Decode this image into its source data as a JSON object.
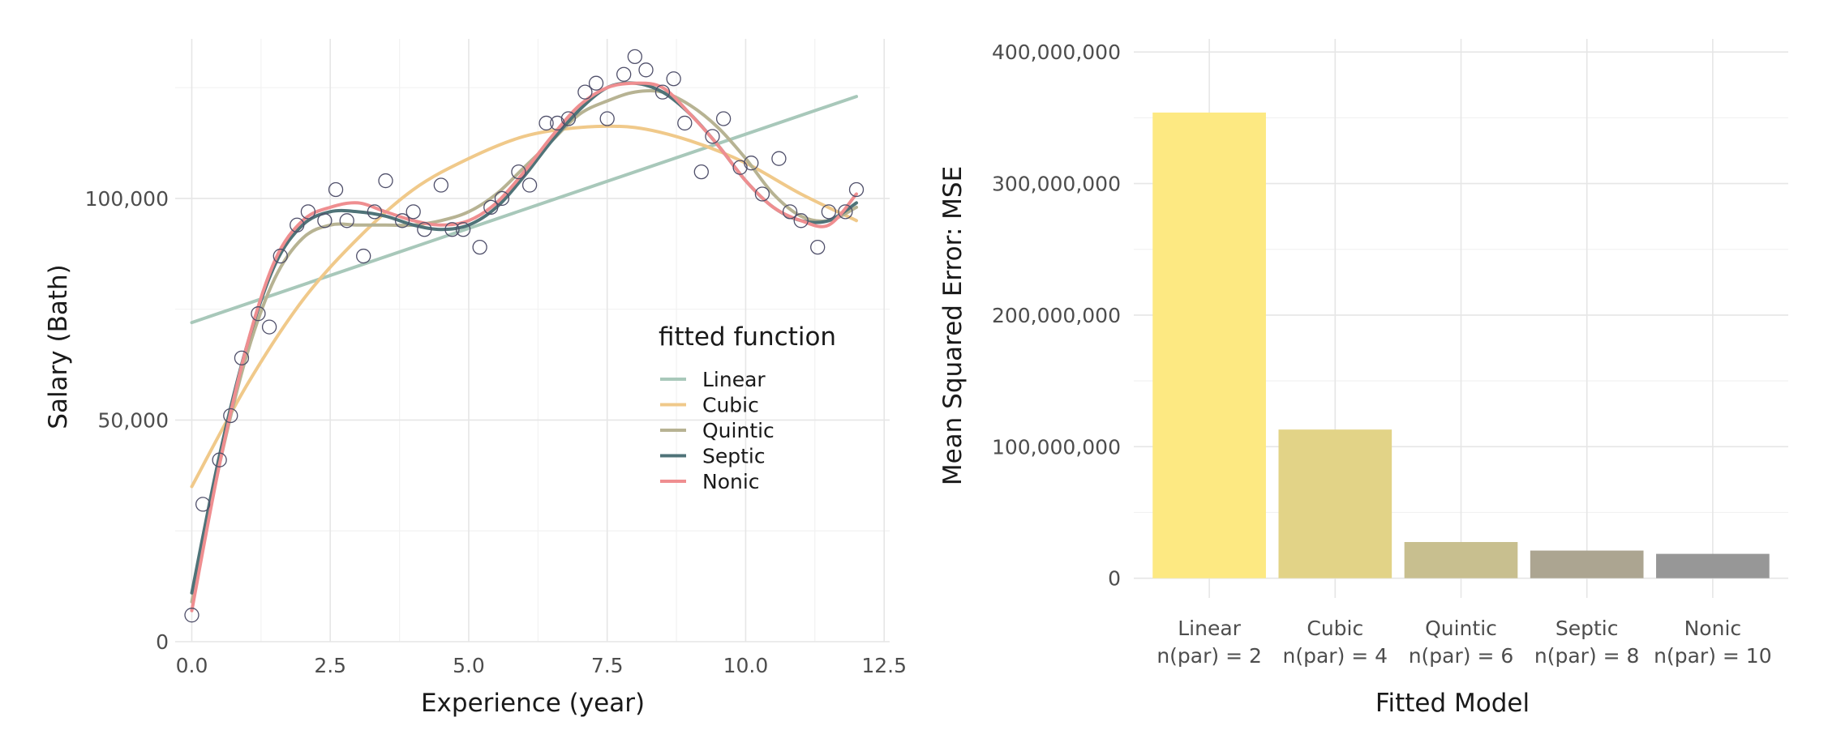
{
  "chart_data": [
    {
      "type": "scatter",
      "xlabel": "Experience (year)",
      "ylabel": "Salary (Bath)",
      "xlim": [
        -0.3,
        12.6
      ],
      "ylim": [
        0,
        136000
      ],
      "x_ticks": [
        0,
        2.5,
        5,
        7.5,
        10,
        12.5
      ],
      "x_tick_labels": [
        "0.0",
        "2.5",
        "5.0",
        "7.5",
        "10.0",
        "12.5"
      ],
      "y_ticks": [
        0,
        50000,
        100000
      ],
      "y_tick_labels": [
        "0",
        "50,000",
        "100,000"
      ],
      "grid": true,
      "points": {
        "x": [
          0.0,
          0.2,
          0.5,
          0.7,
          0.9,
          1.2,
          1.4,
          1.6,
          1.9,
          2.1,
          2.4,
          2.6,
          2.8,
          3.1,
          3.3,
          3.5,
          3.8,
          4.0,
          4.2,
          4.5,
          4.7,
          4.9,
          5.2,
          5.4,
          5.6,
          5.9,
          6.1,
          6.4,
          6.6,
          6.8,
          7.1,
          7.3,
          7.5,
          7.8,
          8.0,
          8.2,
          8.5,
          8.7,
          8.9,
          9.2,
          9.4,
          9.6,
          9.9,
          10.1,
          10.3,
          10.6,
          10.8,
          11.0,
          11.3,
          11.5,
          11.8,
          12.0
        ],
        "y": [
          6000,
          31000,
          41000,
          51000,
          64000,
          74000,
          71000,
          87000,
          94000,
          97000,
          95000,
          102000,
          95000,
          87000,
          97000,
          104000,
          95000,
          97000,
          93000,
          103000,
          93000,
          93000,
          89000,
          98000,
          100000,
          106000,
          103000,
          117000,
          117000,
          118000,
          124000,
          126000,
          118000,
          128000,
          132000,
          129000,
          124000,
          127000,
          117000,
          106000,
          114000,
          118000,
          107000,
          108000,
          101000,
          109000,
          97000,
          95000,
          89000,
          97000,
          97000,
          102000
        ]
      },
      "legend_title": "fitted function",
      "legend_position": "right",
      "series": [
        {
          "name": "Linear",
          "color": "#a8c8ba",
          "x": [
            0,
            12
          ],
          "y": [
            72000,
            123000
          ]
        },
        {
          "name": "Cubic",
          "color": "#f0c98a",
          "x": [
            0,
            1,
            2,
            3,
            4,
            5,
            6,
            7,
            8,
            9,
            10,
            11,
            12
          ],
          "y": [
            35000,
            58000,
            77000,
            91000,
            102000,
            109000,
            114000,
            116000,
            116000,
            113000,
            108000,
            101000,
            95000
          ]
        },
        {
          "name": "Quintic",
          "color": "#b7b393",
          "x": [
            0,
            0.5,
            1,
            1.5,
            2,
            2.5,
            3,
            3.5,
            4,
            4.5,
            5,
            5.5,
            6,
            6.5,
            7,
            7.5,
            8,
            8.5,
            9,
            9.5,
            10,
            10.5,
            11,
            11.5,
            12
          ],
          "y": [
            9000,
            40000,
            65000,
            82000,
            91000,
            94000,
            94000,
            94000,
            94000,
            95000,
            97000,
            101000,
            107000,
            113000,
            119000,
            122000,
            124000,
            124000,
            121000,
            116000,
            109000,
            101000,
            96000,
            95000,
            98000
          ]
        },
        {
          "name": "Septic",
          "color": "#4f7378",
          "x": [
            0,
            0.5,
            1,
            1.5,
            2,
            2.5,
            3,
            3.5,
            4,
            4.5,
            5,
            5.5,
            6,
            6.5,
            7,
            7.5,
            8,
            8.5,
            9,
            9.5,
            10,
            10.5,
            11,
            11.5,
            12
          ],
          "y": [
            11000,
            42000,
            67000,
            85000,
            94000,
            97000,
            97000,
            96000,
            94000,
            93000,
            94000,
            98000,
            105000,
            113000,
            120000,
            125000,
            126000,
            124000,
            119000,
            112000,
            104000,
            98000,
            95000,
            95000,
            99000
          ]
        },
        {
          "name": "Nonic",
          "color": "#ef8e90",
          "x": [
            0,
            0.5,
            1,
            1.5,
            2,
            2.5,
            3,
            3.5,
            4,
            4.5,
            5,
            5.5,
            6,
            6.5,
            7,
            7.5,
            8,
            8.5,
            9,
            9.5,
            10,
            10.5,
            11,
            11.5,
            12
          ],
          "y": [
            7000,
            40000,
            67000,
            86000,
            95000,
            98000,
            99000,
            97000,
            95000,
            94000,
            95000,
            99000,
            106000,
            114000,
            121000,
            125000,
            126000,
            125000,
            119000,
            112000,
            104000,
            98000,
            95000,
            94000,
            101000
          ]
        }
      ]
    },
    {
      "type": "bar",
      "xlabel": "Fitted Model",
      "ylabel": "Mean Squared Error: MSE",
      "ylim": [
        -15000000,
        410000000
      ],
      "y_ticks": [
        0,
        100000000,
        200000000,
        300000000,
        400000000
      ],
      "y_tick_labels": [
        "0",
        "100,000,000",
        "200,000,000",
        "300,000,000",
        "400,000,000"
      ],
      "grid": true,
      "categories": [
        "Linear",
        "Cubic",
        "Quintic",
        "Septic",
        "Nonic"
      ],
      "category_sublabels": [
        "n(par) = 2",
        "n(par) = 4",
        "n(par) = 6",
        "n(par) = 8",
        "n(par) = 10"
      ],
      "values": [
        354000000,
        113000000,
        27500000,
        21000000,
        18500000
      ],
      "colors": [
        "#fde982",
        "#e2d387",
        "#c8bf8f",
        "#aca591",
        "#979797"
      ]
    }
  ]
}
